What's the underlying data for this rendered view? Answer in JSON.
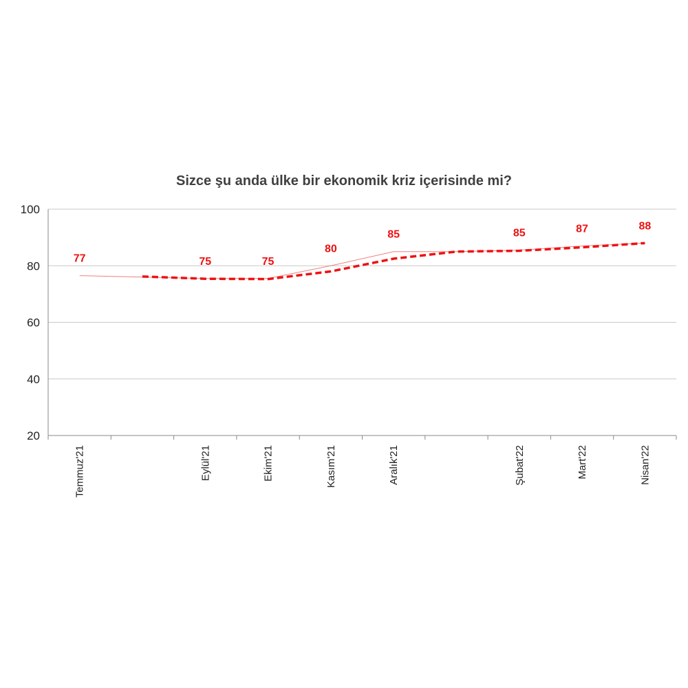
{
  "chart_data": {
    "type": "line",
    "title": "Sizce şu anda ülke bir ekonomik kriz içerisinde mi?",
    "xlabel": "",
    "ylabel": "",
    "ylim": [
      20,
      100
    ],
    "yticks": [
      "100",
      "80",
      "60",
      "40",
      "20"
    ],
    "grid": true,
    "legend": "none",
    "categories": [
      "Temmuz'21",
      "",
      "Eylül'21",
      "Ekim'21",
      "Kasım'21",
      "Aralık'21",
      "",
      "Şubat'22",
      "Mart'22",
      "Nisan'22"
    ],
    "series": [
      {
        "style": "thin-solid",
        "color": "#f08080",
        "values": [
          76.5,
          76,
          75.5,
          75.5,
          80,
          85,
          85,
          85.5,
          87,
          88
        ]
      },
      {
        "style": "dashed-trend",
        "color": "#ee1111",
        "values": [
          null,
          76.2,
          75.4,
          75.3,
          78,
          82.5,
          85,
          85.3,
          86.5,
          88
        ]
      }
    ],
    "data_labels": [
      {
        "index": 0,
        "text": "77"
      },
      {
        "index": 2,
        "text": "75"
      },
      {
        "index": 3,
        "text": "75"
      },
      {
        "index": 4,
        "text": "80"
      },
      {
        "index": 5,
        "text": "85"
      },
      {
        "index": 7,
        "text": "85"
      },
      {
        "index": 8,
        "text": "87"
      },
      {
        "index": 9,
        "text": "88"
      }
    ],
    "label_color": "#ee1111"
  }
}
